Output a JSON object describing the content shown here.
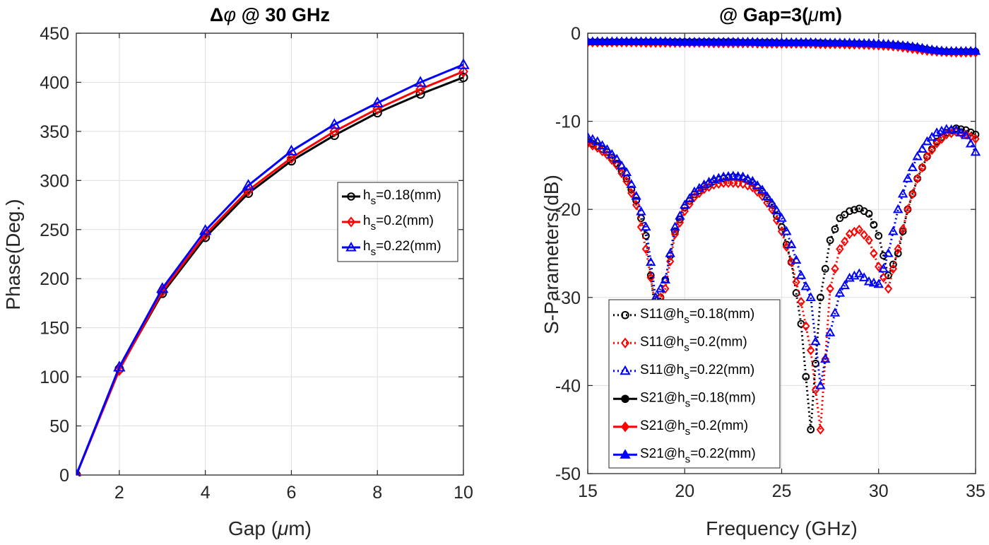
{
  "chart_data": [
    {
      "type": "line",
      "title": {
        "prefix": "Δ",
        "sym": "φ",
        "suffix": " @ 30 GHz"
      },
      "xlabel": {
        "prefix": "Gap (",
        "sym": "μ",
        "suffix": "m)"
      },
      "ylabel": "Phase(Deg.)",
      "xlim": [
        1,
        10
      ],
      "ylim": [
        0,
        450
      ],
      "xticks": [
        2,
        4,
        6,
        8,
        10
      ],
      "yticks": [
        0,
        50,
        100,
        150,
        200,
        250,
        300,
        350,
        400,
        450
      ],
      "grid": true,
      "legend_position": "right",
      "x": [
        1,
        2,
        3,
        4,
        5,
        6,
        7,
        8,
        9,
        10
      ],
      "series": [
        {
          "name": {
            "prefix": "h",
            "sub": "s",
            "suffix": "=0.18(mm)"
          },
          "color": "#000000",
          "marker": "circle",
          "line": "solid",
          "values": [
            0,
            108,
            185,
            242,
            287,
            320,
            346,
            369,
            388,
            405
          ]
        },
        {
          "name": {
            "prefix": "h",
            "sub": "s",
            "suffix": "=0.2(mm)"
          },
          "color": "#ff0000",
          "marker": "diamond",
          "line": "solid",
          "values": [
            0,
            107,
            187,
            245,
            290,
            323,
            350,
            373,
            393,
            411
          ]
        },
        {
          "name": {
            "prefix": "h",
            "sub": "s",
            "suffix": "=0.22(mm)"
          },
          "color": "#0000ff",
          "marker": "triangle",
          "line": "solid",
          "values": [
            0,
            110,
            190,
            249,
            295,
            330,
            357,
            379,
            400,
            418
          ]
        }
      ]
    },
    {
      "type": "line",
      "title": {
        "prefix": "@ Gap=3(",
        "sym": "μ",
        "suffix": "m)"
      },
      "xlabel": "Frequency (GHz)",
      "ylabel": "S-Parameters(dB)",
      "xlim": [
        15,
        35
      ],
      "ylim": [
        -50,
        0
      ],
      "xticks": [
        15,
        20,
        25,
        30,
        35
      ],
      "yticks": [
        0,
        -10,
        -20,
        -30,
        -40,
        -50
      ],
      "grid": true,
      "legend_position": "bottom-left",
      "x": [
        15,
        15.5,
        16,
        16.5,
        17,
        17.5,
        18,
        18.5,
        19,
        19.5,
        20,
        20.5,
        21,
        21.5,
        22,
        22.5,
        23,
        23.5,
        24,
        24.5,
        25,
        25.5,
        26,
        26.5,
        27,
        27.5,
        28,
        28.5,
        29,
        29.5,
        30,
        30.5,
        31,
        31.5,
        32,
        32.5,
        33,
        33.5,
        34,
        34.5,
        35
      ],
      "series": [
        {
          "name": {
            "prefix": "S11@h",
            "sub": "s",
            "suffix": "=0.18(mm)"
          },
          "color": "#000000",
          "marker": "circle",
          "line": "dotted",
          "values": [
            -12.3,
            -12.8,
            -13.5,
            -14.8,
            -16.5,
            -19,
            -23,
            -32,
            -28,
            -22.5,
            -19.8,
            -18.3,
            -17.4,
            -16.8,
            -16.5,
            -16.3,
            -16.5,
            -17,
            -18,
            -19.5,
            -22,
            -26,
            -33,
            -45,
            -30,
            -23.5,
            -21,
            -20.2,
            -19.9,
            -20.5,
            -23,
            -27.5,
            -25,
            -20,
            -16.5,
            -14,
            -12.3,
            -11.3,
            -10.8,
            -11,
            -11.5
          ]
        },
        {
          "name": {
            "prefix": "S11@h",
            "sub": "s",
            "suffix": "=0.2(mm)"
          },
          "color": "#ff0000",
          "marker": "diamond",
          "line": "dotted",
          "values": [
            -12.5,
            -13,
            -13.8,
            -15,
            -16.8,
            -19.5,
            -24.5,
            -31,
            -29,
            -22.8,
            -20.2,
            -18.6,
            -17.7,
            -17.2,
            -17,
            -17,
            -17.1,
            -17.5,
            -18.5,
            -20,
            -22.5,
            -26,
            -30.5,
            -36,
            -45,
            -29,
            -24.5,
            -22.8,
            -22.3,
            -23.5,
            -26.5,
            -29,
            -24.5,
            -20,
            -16.5,
            -14,
            -12.5,
            -11.5,
            -11.2,
            -11.5,
            -12
          ]
        },
        {
          "name": {
            "prefix": "S11@h",
            "sub": "s",
            "suffix": "=0.22(mm)"
          },
          "color": "#0000ff",
          "marker": "triangle",
          "line": "dotted",
          "values": [
            -11.8,
            -12.3,
            -13.2,
            -14.3,
            -15.8,
            -18.5,
            -22,
            -30,
            -28,
            -22,
            -19.5,
            -18,
            -17.2,
            -16.6,
            -16.3,
            -16.2,
            -16.3,
            -16.8,
            -17.8,
            -19.3,
            -21,
            -24,
            -27.5,
            -30,
            -40,
            -34,
            -29.5,
            -27.8,
            -27.3,
            -28.2,
            -28.5,
            -25,
            -20,
            -16.5,
            -14,
            -12.3,
            -11.3,
            -10.9,
            -11,
            -11.6,
            -13.5
          ]
        },
        {
          "name": {
            "prefix": "S21@h",
            "sub": "s",
            "suffix": "=0.18(mm)"
          },
          "color": "#000000",
          "marker": "circle-filled",
          "line": "solid",
          "values": [
            -1,
            -1,
            -1,
            -1,
            -1,
            -1,
            -1,
            -1,
            -1,
            -1,
            -1,
            -1,
            -1,
            -1,
            -1,
            -1,
            -1.05,
            -1.05,
            -1.05,
            -1.05,
            -1.1,
            -1.1,
            -1.1,
            -1.1,
            -1.1,
            -1.15,
            -1.15,
            -1.2,
            -1.2,
            -1.25,
            -1.3,
            -1.35,
            -1.4,
            -1.5,
            -1.65,
            -1.85,
            -2,
            -2.1,
            -2.1,
            -2.1,
            -2.1
          ]
        },
        {
          "name": {
            "prefix": "S21@h",
            "sub": "s",
            "suffix": "=0.2(mm)"
          },
          "color": "#ff0000",
          "marker": "diamond-filled",
          "line": "solid",
          "values": [
            -1.05,
            -1.05,
            -1.05,
            -1.05,
            -1.05,
            -1.05,
            -1.1,
            -1.1,
            -1.1,
            -1.1,
            -1.1,
            -1.1,
            -1.1,
            -1.15,
            -1.15,
            -1.15,
            -1.15,
            -1.15,
            -1.2,
            -1.2,
            -1.2,
            -1.2,
            -1.2,
            -1.2,
            -1.25,
            -1.25,
            -1.25,
            -1.3,
            -1.3,
            -1.35,
            -1.4,
            -1.45,
            -1.55,
            -1.7,
            -1.85,
            -2,
            -2.1,
            -2.15,
            -2.2,
            -2.2,
            -2.2
          ]
        },
        {
          "name": {
            "prefix": "S21@h",
            "sub": "s",
            "suffix": "=0.22(mm)"
          },
          "color": "#0000ff",
          "marker": "triangle-filled",
          "line": "solid",
          "values": [
            -0.95,
            -0.95,
            -0.95,
            -0.95,
            -0.95,
            -0.95,
            -0.95,
            -0.95,
            -0.95,
            -1,
            -1,
            -1,
            -1,
            -1,
            -1,
            -1,
            -1,
            -1,
            -1.05,
            -1.05,
            -1.05,
            -1.05,
            -1.05,
            -1.05,
            -1.1,
            -1.1,
            -1.1,
            -1.1,
            -1.15,
            -1.15,
            -1.2,
            -1.25,
            -1.35,
            -1.45,
            -1.6,
            -1.8,
            -1.95,
            -2.05,
            -2.05,
            -2.05,
            -2.05
          ]
        }
      ]
    }
  ]
}
